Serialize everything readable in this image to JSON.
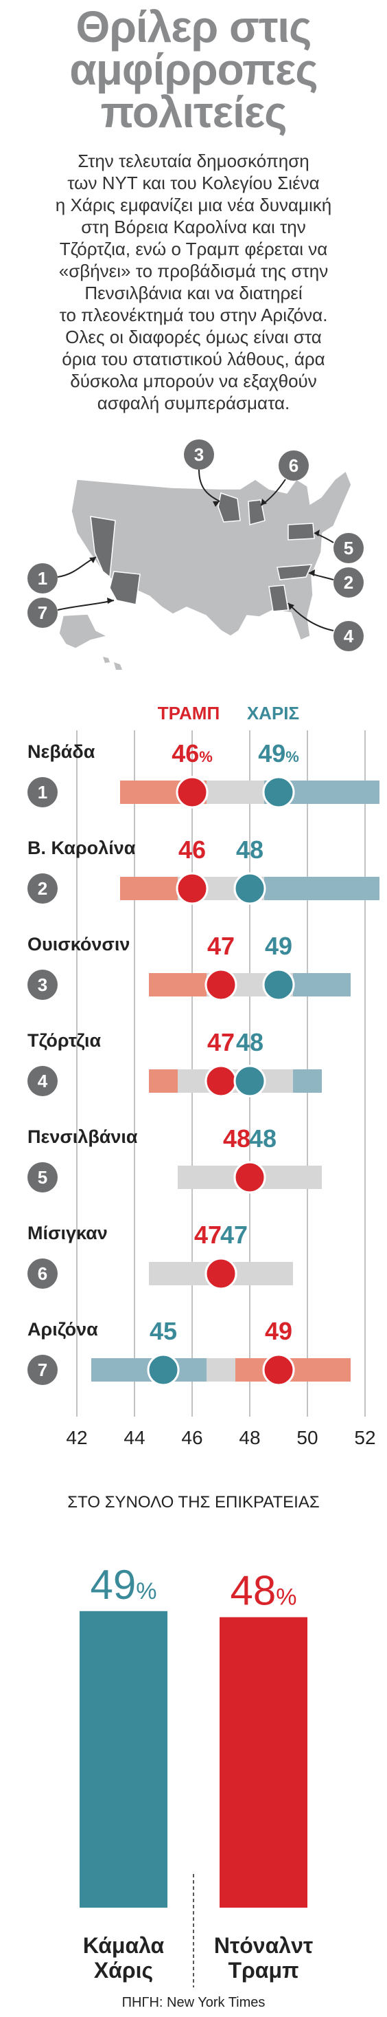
{
  "header": {
    "title_lines": [
      "Θρίλερ στις",
      "αμφίρροπες",
      "πολιτείες"
    ],
    "intro_lines": [
      "Στην τελευταία δημοσκόπηση",
      "των NYT και του Κολεγίου Σιένα",
      "η Χάρις εμφανίζει μια νέα δυναμική",
      "στη Βόρεια Καρολίνα και την",
      "Τζόρτζια, ενώ ο Τραμπ φέρεται να",
      "«σβήνει» το προβάδισμά της στην",
      "Πενσιλβάνια και να διατηρεί",
      "το πλεονέκτημά του στην Αριζόνα.",
      "Ολες οι διαφορές όμως είναι στα",
      "όρια του στατιστικού λάθους, άρα",
      "δύσκολα μπορούν να εξαχθούν",
      "ασφαλή συμπεράσματα."
    ]
  },
  "map": {
    "markers": [
      "1",
      "2",
      "3",
      "4",
      "5",
      "6",
      "7"
    ]
  },
  "colors": {
    "trump": "#d8232a",
    "trump_light": "#ea8f79",
    "harris": "#3a8a99",
    "harris_light": "#8fb4c2",
    "gray": "#d6d6d6",
    "marker": "#6d6e70"
  },
  "chart_data": [
    {
      "type": "dot-range",
      "legend": {
        "trump": "ΤΡΑΜΠ",
        "harris": "ΧΑΡΙΣ"
      },
      "xlim": [
        42,
        52
      ],
      "xticks": [
        "42",
        "44",
        "46",
        "48",
        "50",
        "52"
      ],
      "states": [
        {
          "num": "1",
          "name": "Νεβάδα",
          "trump": 46,
          "harris": 49,
          "trump_label": "46",
          "harris_label": "49",
          "pct": "%",
          "trump_range": [
            43.5,
            48.5
          ],
          "harris_range": [
            46.5,
            52.5
          ]
        },
        {
          "num": "2",
          "name": "Β. Καρολίνα",
          "trump": 46,
          "harris": 48,
          "trump_label": "46",
          "harris_label": "48",
          "pct": "",
          "trump_range": [
            43.5,
            48.5
          ],
          "harris_range": [
            45.5,
            52.5
          ]
        },
        {
          "num": "3",
          "name": "Ουισκόνσιν",
          "trump": 47,
          "harris": 49,
          "trump_label": "47",
          "harris_label": "49",
          "pct": "",
          "trump_range": [
            44.5,
            49.5
          ],
          "harris_range": [
            46.5,
            51.5
          ]
        },
        {
          "num": "4",
          "name": "Τζόρτζια",
          "trump": 47,
          "harris": 48,
          "trump_label": "47",
          "harris_label": "48",
          "pct": "",
          "trump_range": [
            44.5,
            49.5
          ],
          "harris_range": [
            45.5,
            50.5
          ]
        },
        {
          "num": "5",
          "name": "Πενσιλβάνια",
          "trump": 48,
          "harris": 48,
          "trump_label": "48",
          "harris_label": "48",
          "pct": "",
          "trump_range": [
            45.5,
            50.5
          ],
          "harris_range": [
            45.5,
            50.5
          ]
        },
        {
          "num": "6",
          "name": "Μίσιγκαν",
          "trump": 47,
          "harris": 47,
          "trump_label": "47",
          "harris_label": "47",
          "pct": "",
          "trump_range": [
            44.5,
            49.5
          ],
          "harris_range": [
            44.5,
            49.5
          ]
        },
        {
          "num": "7",
          "name": "Αριζόνα",
          "trump": 49,
          "harris": 45,
          "trump_label": "49",
          "harris_label": "45",
          "pct": "",
          "trump_range": [
            46.5,
            51.5
          ],
          "harris_range": [
            42.5,
            47.5
          ]
        }
      ]
    },
    {
      "type": "bar",
      "title": "ΣΤΟ ΣΥΝΟΛΟ ΤΗΣ ΕΠΙΚΡΑΤΕΙΑΣ",
      "categories": [
        "Κάμαλα Χάρις",
        "Ντόναλντ Τραμπ"
      ],
      "name_lines": [
        [
          "Κάμαλα",
          "Χάρις"
        ],
        [
          "Ντόναλντ",
          "Τραμπ"
        ]
      ],
      "values": [
        49,
        48
      ],
      "value_labels": [
        "49",
        "48"
      ],
      "pct": "%",
      "colors": [
        "#3a8a99",
        "#d8232a"
      ]
    }
  ],
  "source": "ΠΗΓΗ: New York Times"
}
